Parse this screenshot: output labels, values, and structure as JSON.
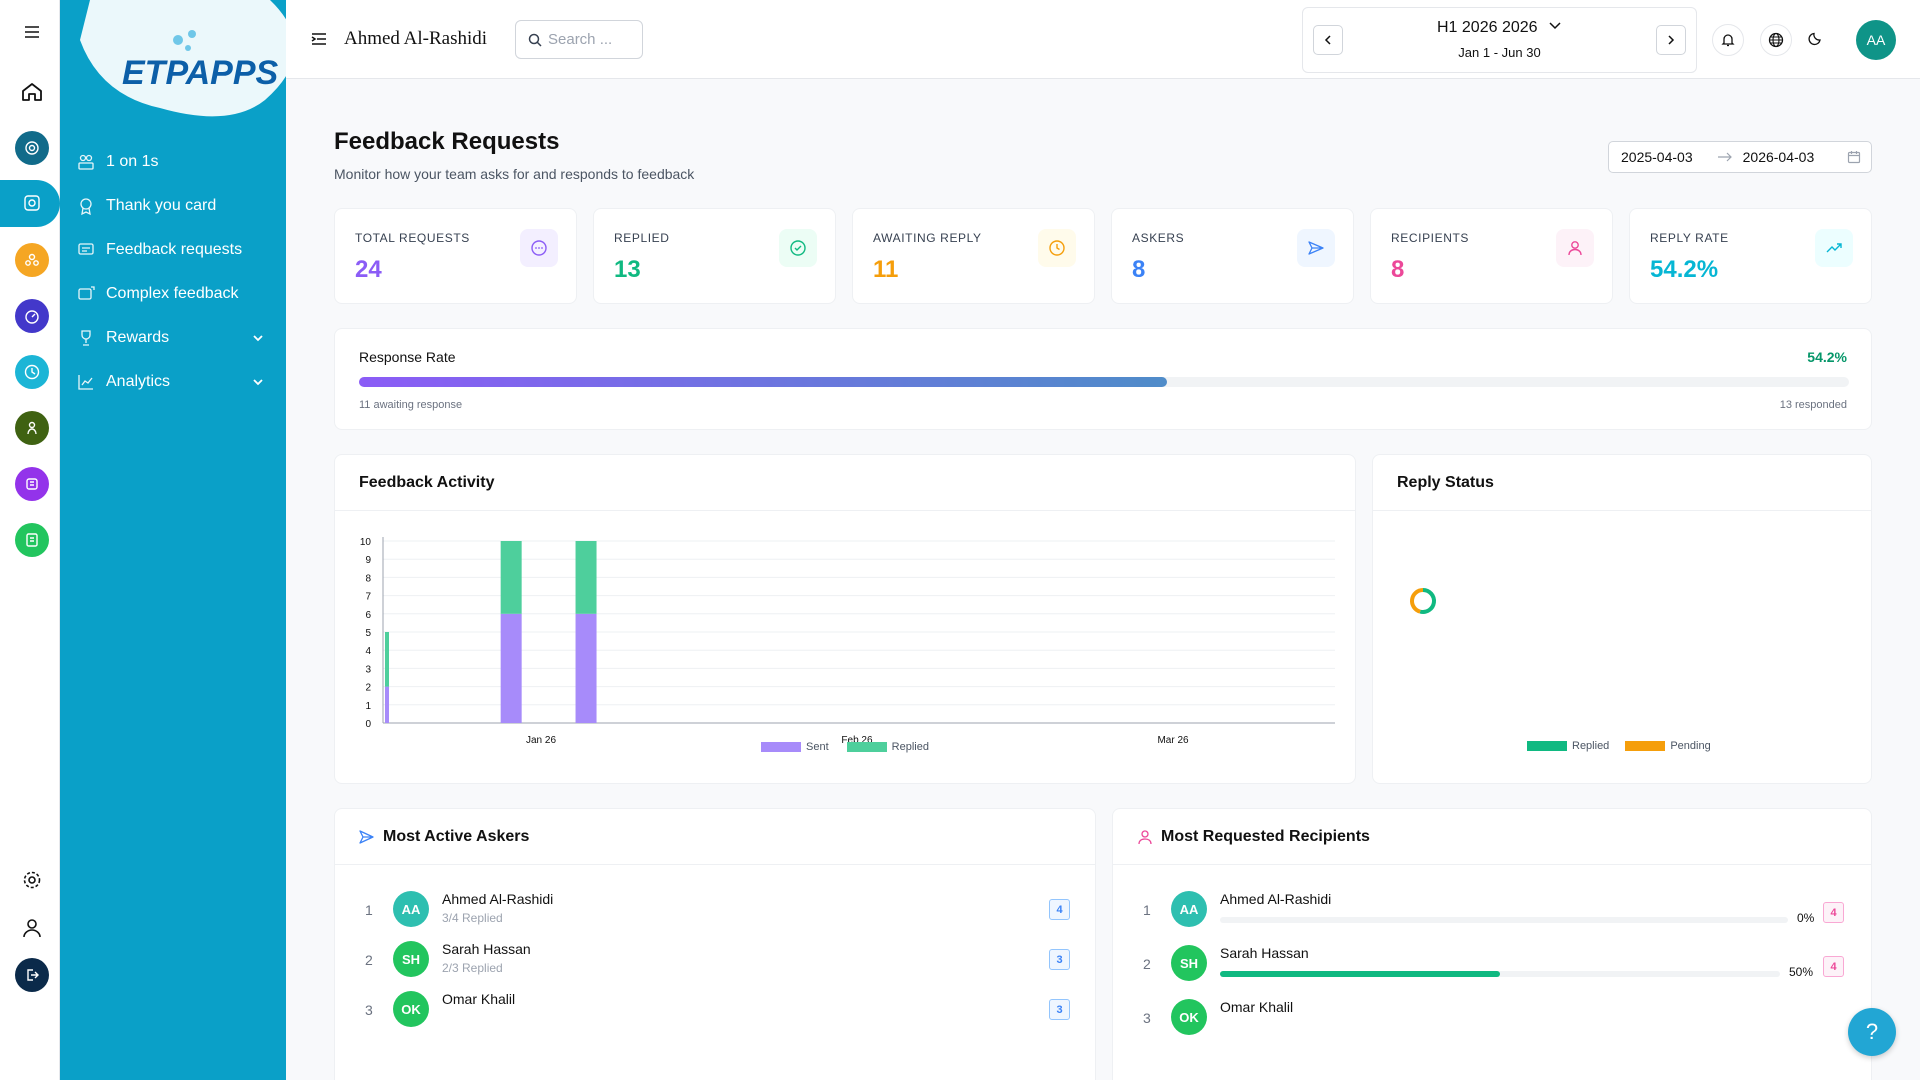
{
  "brand": {
    "logo_text": "ETPAPPS"
  },
  "header": {
    "user_name": "Ahmed Al-Rashidi",
    "search_placeholder": "Search ...",
    "period_title": "H1 2026 2026",
    "period_range": "Jan 1 - Jun 30",
    "avatar_initials": "AA"
  },
  "sidebar": {
    "items": [
      {
        "label": "1 on 1s",
        "icon": "people-icon"
      },
      {
        "label": "Thank you card",
        "icon": "award-icon"
      },
      {
        "label": "Feedback requests",
        "icon": "feedback-icon"
      },
      {
        "label": "Complex feedback",
        "icon": "complex-feedback-icon"
      },
      {
        "label": "Rewards",
        "icon": "trophy-icon"
      },
      {
        "label": "Analytics",
        "icon": "chart-icon"
      }
    ]
  },
  "page": {
    "title": "Feedback Requests",
    "subtitle": "Monitor how your team asks for and responds to feedback",
    "date_from": "2025-04-03",
    "date_to": "2026-04-03"
  },
  "stats": [
    {
      "label": "TOTAL REQUESTS",
      "value": "24",
      "color": "#8b5cf6",
      "bg": "#f3efff",
      "icon": "chat-icon"
    },
    {
      "label": "REPLIED",
      "value": "13",
      "color": "#10b981",
      "bg": "#ecfdf5",
      "icon": "check-circle-icon"
    },
    {
      "label": "AWAITING REPLY",
      "value": "11",
      "color": "#f59e0b",
      "bg": "#fffbeb",
      "icon": "clock-icon"
    },
    {
      "label": "ASKERS",
      "value": "8",
      "color": "#3b82f6",
      "bg": "#eff6ff",
      "icon": "send-icon"
    },
    {
      "label": "RECIPIENTS",
      "value": "8",
      "color": "#ec4899",
      "bg": "#fdf2f8",
      "icon": "user-icon"
    },
    {
      "label": "REPLY RATE",
      "value": "54.2%",
      "color": "#06b6d4",
      "bg": "#ecfeff",
      "icon": "trend-icon"
    }
  ],
  "response_rate": {
    "label": "Response Rate",
    "percent_text": "54.2%",
    "fraction": 0.542,
    "awaiting_text": "11 awaiting response",
    "responded_text": "13 responded"
  },
  "activity": {
    "title": "Feedback Activity",
    "legend": [
      "Sent",
      "Replied"
    ]
  },
  "reply_status": {
    "title": "Reply Status",
    "legend": [
      "Replied",
      "Pending"
    ]
  },
  "chart_data": [
    {
      "type": "bar",
      "stacked": true,
      "title": "Feedback Activity",
      "x": [
        "2026-01-05",
        "2026-01-12",
        "2026-01-19"
      ],
      "x_ticks": [
        "Jan 26",
        "Feb 26",
        "Mar 26"
      ],
      "xlim": [
        "2026-01-01",
        "2026-03-31"
      ],
      "series": [
        {
          "name": "Sent",
          "values": [
            2,
            6,
            6
          ],
          "color": "#a78bfa"
        },
        {
          "name": "Replied",
          "values": [
            3,
            4,
            4
          ],
          "color": "#4ecf9c"
        }
      ],
      "ylim": [
        0,
        10
      ],
      "yticks": [
        0,
        1,
        2,
        3,
        4,
        5,
        6,
        7,
        8,
        9,
        10
      ],
      "grid": true,
      "legend": "bottom"
    },
    {
      "type": "pie",
      "donut": true,
      "title": "Reply Status",
      "categories": [
        "Replied",
        "Pending"
      ],
      "values": [
        13,
        11
      ],
      "colors": [
        "#10b981",
        "#f59e0b"
      ],
      "legend": "bottom"
    }
  ],
  "askers": {
    "title": "Most Active Askers",
    "rows": [
      {
        "rank": "1",
        "initials": "AA",
        "name": "Ahmed Al-Rashidi",
        "sub": "3/4 Replied",
        "count": "4",
        "color": "#2ebfb0"
      },
      {
        "rank": "2",
        "initials": "SH",
        "name": "Sarah Hassan",
        "sub": "2/3 Replied",
        "count": "3",
        "color": "#22c55e"
      },
      {
        "rank": "3",
        "initials": "OK",
        "name": "Omar Khalil",
        "sub": "",
        "count": "3",
        "color": "#22c55e"
      }
    ]
  },
  "recipients": {
    "title": "Most Requested Recipients",
    "rows": [
      {
        "rank": "1",
        "initials": "AA",
        "name": "Ahmed Al-Rashidi",
        "pct": "0%",
        "fraction": 0,
        "count": "4",
        "color": "#2ebfb0"
      },
      {
        "rank": "2",
        "initials": "SH",
        "name": "Sarah Hassan",
        "pct": "50%",
        "fraction": 0.5,
        "count": "4",
        "color": "#22c55e"
      },
      {
        "rank": "3",
        "initials": "OK",
        "name": "Omar Khalil",
        "pct": "",
        "fraction": 0,
        "count": "",
        "color": "#22c55e"
      }
    ]
  },
  "help": {
    "label": "?"
  }
}
